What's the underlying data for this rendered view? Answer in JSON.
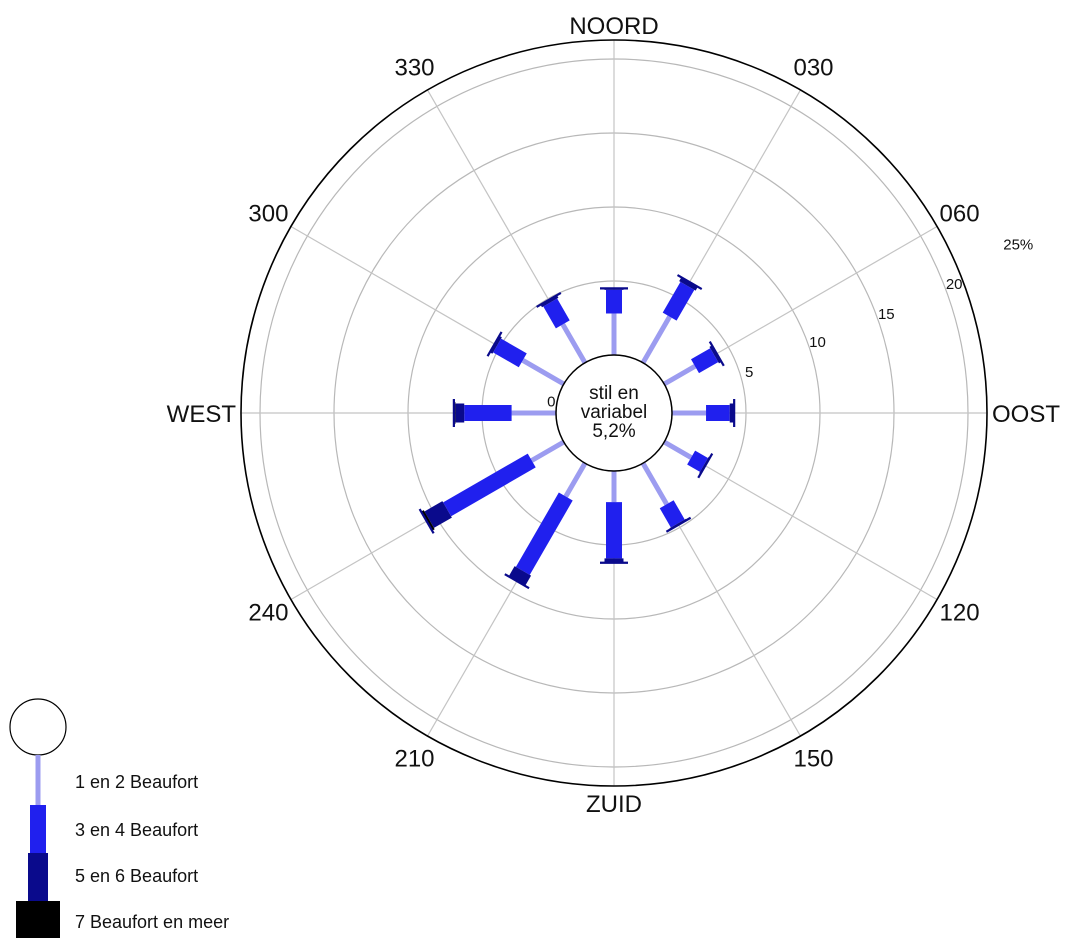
{
  "chart_data": {
    "type": "wind-rose",
    "unit": "%",
    "directions": [
      {
        "label": "NOORD",
        "angle": 0
      },
      {
        "label": "030",
        "angle": 30
      },
      {
        "label": "060",
        "angle": 60
      },
      {
        "label": "OOST",
        "angle": 90
      },
      {
        "label": "120",
        "angle": 120
      },
      {
        "label": "150",
        "angle": 150
      },
      {
        "label": "ZUID",
        "angle": 180
      },
      {
        "label": "210",
        "angle": 210
      },
      {
        "label": "240",
        "angle": 240
      },
      {
        "label": "WEST",
        "angle": 270
      },
      {
        "label": "300",
        "angle": 300
      },
      {
        "label": "330",
        "angle": 330
      }
    ],
    "rings": [
      "0",
      "5",
      "10",
      "15",
      "20",
      "25%"
    ],
    "calm": {
      "text_line1": "stil en",
      "text_line2": "variabel",
      "value_label": "5,2%",
      "value": 5.2
    },
    "classes": [
      {
        "name": "1 en 2 Beaufort",
        "color": "#9c9cf0"
      },
      {
        "name": "3 en 4 Beaufort",
        "color": "#2020ee"
      },
      {
        "name": "5 en 6 Beaufort",
        "color": "#0a0a8c"
      },
      {
        "name": "7 Beaufort en meer",
        "color": "#000000"
      }
    ],
    "data": [
      {
        "angle": 0,
        "values": [
          2.8,
          1.6,
          0.1,
          0
        ]
      },
      {
        "angle": 30,
        "values": [
          3.6,
          2.4,
          0.3,
          0
        ]
      },
      {
        "angle": 60,
        "values": [
          2.4,
          1.5,
          0.2,
          0
        ]
      },
      {
        "angle": 90,
        "values": [
          2.3,
          1.6,
          0.3,
          0
        ]
      },
      {
        "angle": 120,
        "values": [
          2.1,
          1.0,
          0.1,
          0
        ]
      },
      {
        "angle": 150,
        "values": [
          3.2,
          1.5,
          0.1,
          0
        ]
      },
      {
        "angle": 180,
        "values": [
          2.1,
          3.8,
          0.3,
          0
        ]
      },
      {
        "angle": 210,
        "values": [
          2.6,
          5.8,
          0.8,
          0
        ]
      },
      {
        "angle": 240,
        "values": [
          2.5,
          6.6,
          1.4,
          0.2
        ]
      },
      {
        "angle": 270,
        "values": [
          3.0,
          3.2,
          0.6,
          0.1
        ]
      },
      {
        "angle": 300,
        "values": [
          3.2,
          2.0,
          0.2,
          0
        ]
      },
      {
        "angle": 330,
        "values": [
          3.0,
          1.7,
          0.2,
          0
        ]
      }
    ],
    "grid": true,
    "legend_position": "bottom-left"
  }
}
